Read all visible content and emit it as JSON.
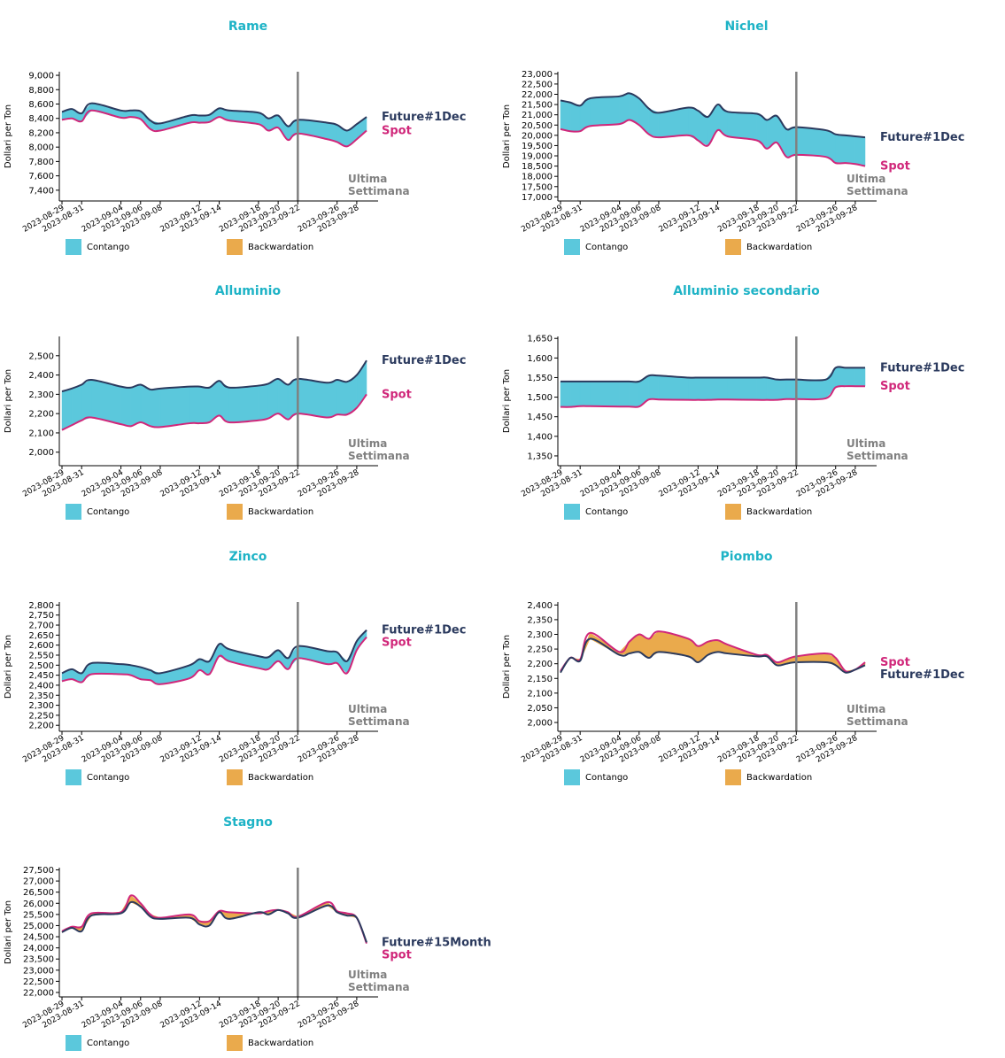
{
  "colors": {
    "title": "#1eb3c6",
    "future": "#2b3a5e",
    "spot": "#d0277a",
    "contango": "#5bc8dc",
    "backwardation": "#eaaa4c",
    "vline": "#808080",
    "annotation": "#808080"
  },
  "common": {
    "ylabel": "Dollari per Ton",
    "legend_contango": "Contango",
    "legend_backwardation": "Backwardation",
    "annotation_line1": "Ultima",
    "annotation_line2": "Settimana",
    "x_ticks": [
      "2023-08-29",
      "2023-08-31",
      "2023-09-04",
      "2023-09-06",
      "2023-09-08",
      "2023-09-12",
      "2023-09-14",
      "2023-09-18",
      "2023-09-20",
      "2023-09-22",
      "2023-09-26",
      "2023-09-28"
    ],
    "vline_date": "2023-09-22"
  },
  "chart_data": [
    {
      "type": "area",
      "title": "Rame",
      "ylabel": "Dollari per Ton",
      "ylim": [
        7250,
        9050
      ],
      "yticks": [
        7400,
        7600,
        7800,
        8000,
        8200,
        8400,
        8600,
        8800,
        9000
      ],
      "x": [
        "2023-08-29",
        "2023-08-30",
        "2023-08-31",
        "2023-09-01",
        "2023-09-04",
        "2023-09-05",
        "2023-09-06",
        "2023-09-07",
        "2023-09-08",
        "2023-09-11",
        "2023-09-12",
        "2023-09-13",
        "2023-09-14",
        "2023-09-15",
        "2023-09-18",
        "2023-09-19",
        "2023-09-20",
        "2023-09-21",
        "2023-09-22",
        "2023-09-25",
        "2023-09-26",
        "2023-09-27",
        "2023-09-28",
        "2023-09-29"
      ],
      "series": [
        {
          "name": "Future#1Dec",
          "values": [
            8490,
            8530,
            8470,
            8610,
            8510,
            8510,
            8500,
            8370,
            8330,
            8440,
            8440,
            8450,
            8540,
            8510,
            8480,
            8400,
            8440,
            8290,
            8380,
            8340,
            8310,
            8230,
            8320,
            8420
          ]
        },
        {
          "name": "Spot",
          "values": [
            8380,
            8400,
            8360,
            8510,
            8410,
            8420,
            8390,
            8250,
            8230,
            8340,
            8340,
            8350,
            8420,
            8370,
            8320,
            8230,
            8270,
            8100,
            8190,
            8110,
            8070,
            8010,
            8110,
            8230
          ]
        }
      ],
      "label_future": "Future#1Dec",
      "label_spot": "Spot"
    },
    {
      "type": "area",
      "title": "Nichel",
      "ylabel": "Dollari per Ton",
      "ylim": [
        16800,
        23100
      ],
      "yticks": [
        17000,
        17500,
        18000,
        18500,
        19000,
        19500,
        20000,
        20500,
        21000,
        21500,
        22000,
        22500,
        23000
      ],
      "x": [
        "2023-08-29",
        "2023-08-30",
        "2023-08-31",
        "2023-09-01",
        "2023-09-04",
        "2023-09-05",
        "2023-09-06",
        "2023-09-07",
        "2023-09-08",
        "2023-09-11",
        "2023-09-12",
        "2023-09-13",
        "2023-09-14",
        "2023-09-15",
        "2023-09-18",
        "2023-09-19",
        "2023-09-20",
        "2023-09-21",
        "2023-09-22",
        "2023-09-25",
        "2023-09-26",
        "2023-09-27",
        "2023-09-28",
        "2023-09-29"
      ],
      "series": [
        {
          "name": "Future#1Dec",
          "values": [
            21700,
            21600,
            21450,
            21800,
            21900,
            22050,
            21800,
            21300,
            21100,
            21350,
            21200,
            20900,
            21500,
            21150,
            21050,
            20750,
            20950,
            20300,
            20400,
            20250,
            20050,
            20000,
            19950,
            19900
          ]
        },
        {
          "name": "Spot",
          "values": [
            20300,
            20200,
            20200,
            20450,
            20550,
            20750,
            20500,
            20050,
            19900,
            20000,
            19750,
            19500,
            20250,
            19950,
            19750,
            19350,
            19650,
            18950,
            19050,
            18950,
            18650,
            18650,
            18600,
            18500
          ]
        }
      ],
      "label_future": "Future#1Dec",
      "label_spot": "Spot"
    },
    {
      "type": "area",
      "title": "Alluminio",
      "ylabel": "Dollari per Ton",
      "ylim": [
        1930,
        2600
      ],
      "yticks": [
        2000,
        2100,
        2200,
        2300,
        2400,
        2500
      ],
      "x": [
        "2023-08-29",
        "2023-08-30",
        "2023-08-31",
        "2023-09-01",
        "2023-09-04",
        "2023-09-05",
        "2023-09-06",
        "2023-09-07",
        "2023-09-08",
        "2023-09-11",
        "2023-09-12",
        "2023-09-13",
        "2023-09-14",
        "2023-09-15",
        "2023-09-18",
        "2023-09-19",
        "2023-09-20",
        "2023-09-21",
        "2023-09-22",
        "2023-09-25",
        "2023-09-26",
        "2023-09-27",
        "2023-09-28",
        "2023-09-29"
      ],
      "series": [
        {
          "name": "Future#1Dec",
          "values": [
            2315,
            2330,
            2350,
            2375,
            2340,
            2335,
            2350,
            2325,
            2330,
            2340,
            2340,
            2335,
            2370,
            2335,
            2345,
            2355,
            2380,
            2350,
            2380,
            2360,
            2375,
            2365,
            2400,
            2475
          ]
        },
        {
          "name": "Spot",
          "values": [
            2115,
            2140,
            2165,
            2180,
            2145,
            2135,
            2155,
            2135,
            2130,
            2150,
            2150,
            2155,
            2190,
            2155,
            2165,
            2175,
            2200,
            2170,
            2200,
            2180,
            2195,
            2195,
            2230,
            2300
          ]
        }
      ],
      "label_future": "Future#1Dec",
      "label_spot": "Spot"
    },
    {
      "type": "area",
      "title": "Alluminio secondario",
      "ylabel": "Dollari per Ton",
      "ylim": [
        1325,
        1655
      ],
      "yticks": [
        1350,
        1400,
        1450,
        1500,
        1550,
        1600,
        1650
      ],
      "x": [
        "2023-08-29",
        "2023-08-30",
        "2023-08-31",
        "2023-09-01",
        "2023-09-04",
        "2023-09-05",
        "2023-09-06",
        "2023-09-07",
        "2023-09-08",
        "2023-09-11",
        "2023-09-12",
        "2023-09-13",
        "2023-09-14",
        "2023-09-15",
        "2023-09-18",
        "2023-09-19",
        "2023-09-20",
        "2023-09-21",
        "2023-09-22",
        "2023-09-25",
        "2023-09-26",
        "2023-09-27",
        "2023-09-28",
        "2023-09-29"
      ],
      "series": [
        {
          "name": "Future#1Dec",
          "values": [
            1540,
            1540,
            1540,
            1540,
            1540,
            1540,
            1540,
            1555,
            1555,
            1550,
            1550,
            1550,
            1550,
            1550,
            1550,
            1550,
            1545,
            1545,
            1545,
            1545,
            1575,
            1575,
            1575,
            1575
          ]
        },
        {
          "name": "Spot",
          "values": [
            1475,
            1475,
            1477,
            1477,
            1476,
            1476,
            1476,
            1494,
            1494,
            1493,
            1493,
            1493,
            1494,
            1494,
            1493,
            1493,
            1493,
            1495,
            1495,
            1497,
            1525,
            1528,
            1528,
            1528
          ]
        }
      ],
      "label_future": "Future#1Dec",
      "label_spot": "Spot"
    },
    {
      "type": "area",
      "title": "Zinco",
      "ylabel": "Dollari per Ton",
      "ylim": [
        2170,
        2815
      ],
      "yticks": [
        2200,
        2250,
        2300,
        2350,
        2400,
        2450,
        2500,
        2550,
        2600,
        2650,
        2700,
        2750,
        2800
      ],
      "x": [
        "2023-08-29",
        "2023-08-30",
        "2023-08-31",
        "2023-09-01",
        "2023-09-04",
        "2023-09-05",
        "2023-09-06",
        "2023-09-07",
        "2023-09-08",
        "2023-09-11",
        "2023-09-12",
        "2023-09-13",
        "2023-09-14",
        "2023-09-15",
        "2023-09-18",
        "2023-09-19",
        "2023-09-20",
        "2023-09-21",
        "2023-09-22",
        "2023-09-25",
        "2023-09-26",
        "2023-09-27",
        "2023-09-28",
        "2023-09-29"
      ],
      "series": [
        {
          "name": "Future#1Dec",
          "values": [
            2460,
            2480,
            2460,
            2510,
            2505,
            2500,
            2490,
            2475,
            2460,
            2500,
            2530,
            2520,
            2605,
            2580,
            2545,
            2540,
            2575,
            2535,
            2595,
            2570,
            2565,
            2520,
            2620,
            2675
          ]
        },
        {
          "name": "Spot",
          "values": [
            2420,
            2430,
            2415,
            2455,
            2455,
            2450,
            2430,
            2425,
            2405,
            2435,
            2475,
            2455,
            2545,
            2520,
            2485,
            2480,
            2520,
            2480,
            2535,
            2505,
            2510,
            2460,
            2575,
            2640
          ]
        }
      ],
      "label_future": "Future#1Dec",
      "label_spot": "Spot"
    },
    {
      "type": "area",
      "title": "Piombo",
      "ylabel": "Dollari per Ton",
      "ylim": [
        1970,
        2410
      ],
      "yticks": [
        2000,
        2050,
        2100,
        2150,
        2200,
        2250,
        2300,
        2350,
        2400
      ],
      "x": [
        "2023-08-29",
        "2023-08-30",
        "2023-08-31",
        "2023-09-01",
        "2023-09-04",
        "2023-09-05",
        "2023-09-06",
        "2023-09-07",
        "2023-09-08",
        "2023-09-11",
        "2023-09-12",
        "2023-09-13",
        "2023-09-14",
        "2023-09-15",
        "2023-09-18",
        "2023-09-19",
        "2023-09-20",
        "2023-09-21",
        "2023-09-22",
        "2023-09-25",
        "2023-09-26",
        "2023-09-27",
        "2023-09-28",
        "2023-09-29"
      ],
      "series": [
        {
          "name": "Future#1Dec",
          "values": [
            2170,
            2220,
            2210,
            2285,
            2230,
            2235,
            2240,
            2220,
            2240,
            2225,
            2205,
            2230,
            2240,
            2235,
            2225,
            2225,
            2195,
            2200,
            2205,
            2205,
            2195,
            2170,
            2180,
            2195
          ]
        },
        {
          "name": "Spot",
          "values": [
            2175,
            2220,
            2215,
            2305,
            2240,
            2275,
            2300,
            2285,
            2310,
            2285,
            2260,
            2275,
            2280,
            2265,
            2230,
            2230,
            2205,
            2215,
            2225,
            2235,
            2220,
            2175,
            2180,
            2205
          ]
        }
      ],
      "label_future": "Future#1Dec",
      "label_spot": "Spot"
    },
    {
      "type": "area",
      "title": "Stagno",
      "ylabel": "Dollari per Ton",
      "ylim": [
        21800,
        27600
      ],
      "yticks": [
        22000,
        22500,
        23000,
        23500,
        24000,
        24500,
        25000,
        25500,
        26000,
        26500,
        27000,
        27500
      ],
      "x": [
        "2023-08-29",
        "2023-08-30",
        "2023-08-31",
        "2023-09-01",
        "2023-09-04",
        "2023-09-05",
        "2023-09-06",
        "2023-09-07",
        "2023-09-08",
        "2023-09-11",
        "2023-09-12",
        "2023-09-13",
        "2023-09-14",
        "2023-09-15",
        "2023-09-18",
        "2023-09-19",
        "2023-09-20",
        "2023-09-21",
        "2023-09-22",
        "2023-09-25",
        "2023-09-26",
        "2023-09-27",
        "2023-09-28",
        "2023-09-29"
      ],
      "series": [
        {
          "name": "Future#15Month",
          "values": [
            24700,
            24900,
            24750,
            25450,
            25550,
            26050,
            25850,
            25400,
            25300,
            25350,
            25050,
            25000,
            25600,
            25300,
            25600,
            25500,
            25700,
            25550,
            25350,
            25900,
            25600,
            25450,
            25350,
            24250
          ]
        },
        {
          "name": "Spot",
          "values": [
            24750,
            24950,
            24950,
            25550,
            25600,
            26350,
            26000,
            25500,
            25350,
            25500,
            25200,
            25200,
            25650,
            25600,
            25550,
            25650,
            25700,
            25600,
            25400,
            26050,
            25650,
            25550,
            25350,
            24200
          ]
        }
      ],
      "label_future": "Future#15Month",
      "label_spot": "Spot"
    }
  ]
}
